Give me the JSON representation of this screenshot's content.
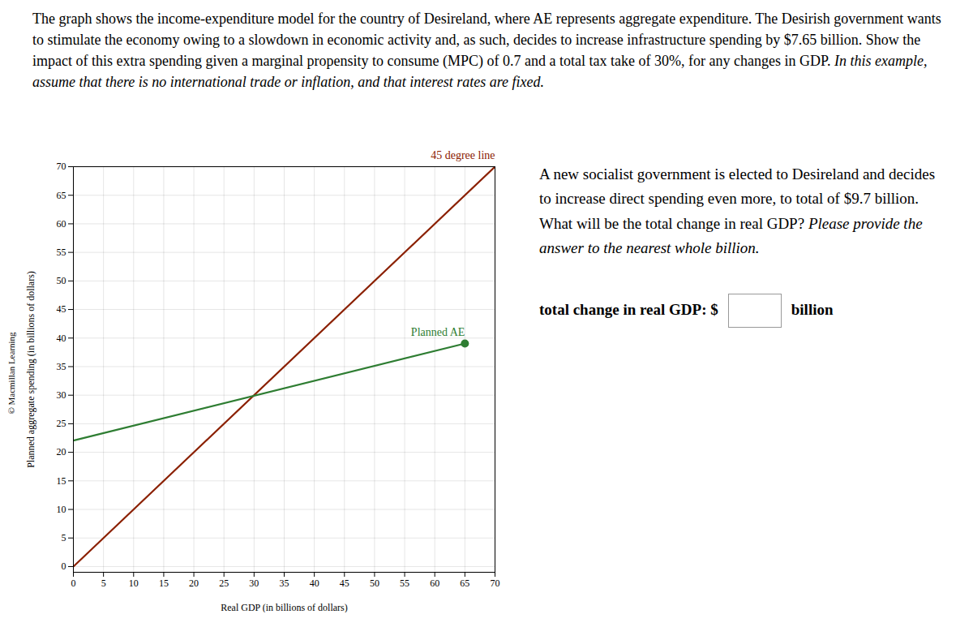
{
  "chart_data": {
    "type": "line",
    "title": "The graph shows the income-expenditure model for the country of Desireland, where AE represents aggregate expenditure. The Desirish government wants to stimulate the economy owing to a slowdown in economic activity and, as such, decides to increase infrastructure spending by $7.65 billion. Show the impact of this extra spending given a marginal propensity to consume (MPC) of 0.7 and a total tax take of 30%, for any changes in GDP.",
    "subtitle": "In this example, assume that there is no international trade or inflation, and that interest rates are fixed.",
    "xlabel": "Real GDP (in billions of dollars)",
    "ylabel": "Planned aggregate spending (in billions of dollars)",
    "xlim": [
      0,
      70
    ],
    "ylim": [
      -1,
      70
    ],
    "xticks": [
      0,
      5,
      10,
      15,
      20,
      25,
      30,
      35,
      40,
      45,
      50,
      55,
      60,
      65,
      70
    ],
    "yticks": [
      0,
      5,
      10,
      15,
      20,
      25,
      30,
      35,
      40,
      45,
      50,
      55,
      60,
      65,
      70
    ],
    "grid": true,
    "series": [
      {
        "name": "45 degree line",
        "color": "#8B2000",
        "x": [
          0,
          70
        ],
        "values": [
          0,
          70
        ]
      },
      {
        "name": "Planned AE",
        "color": "#2E7D32",
        "x": [
          0,
          65
        ],
        "values": [
          22.05,
          39.0475
        ]
      },
      {
        "name": "Planned AE",
        "type": "scatter",
        "marker": "circle",
        "color": "#2E7D32",
        "x": [
          65
        ],
        "values": [
          39.0475
        ]
      }
    ],
    "annotations": [
      "A new socialist government is elected to Desireland and decides to increase direct spending even more, to total of $9.7 billion. What will be the total change in real GDP?",
      "Please provide the answer to the nearest whole billion.",
      "total change in real GDP: $",
      "billion",
      "© Macmillan Learning"
    ]
  }
}
